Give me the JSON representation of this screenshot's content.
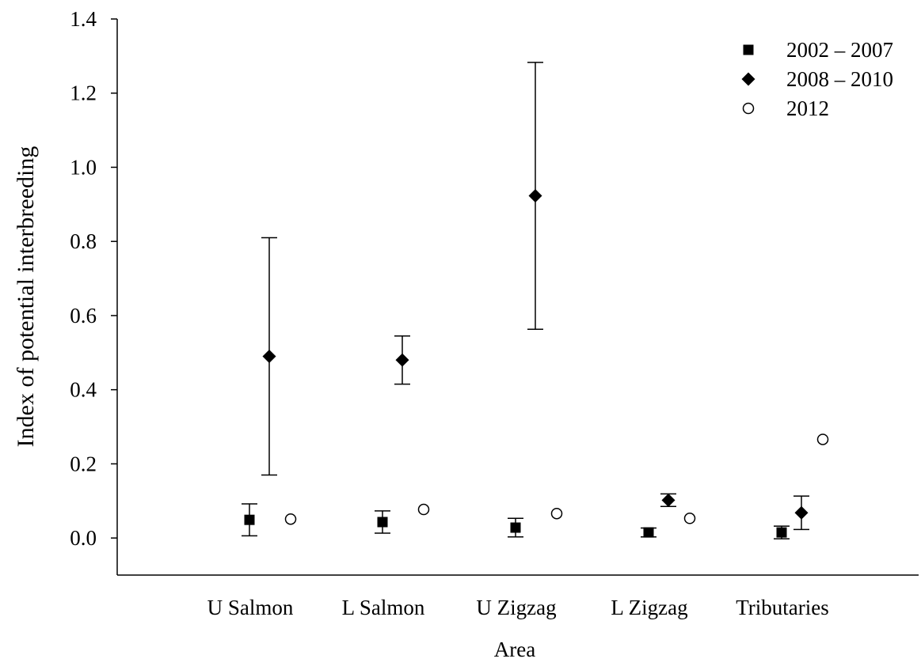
{
  "chart_data": {
    "type": "scatter",
    "x_label": "Area",
    "y_label": "Index of potential interbreeding",
    "categories": [
      "U Salmon",
      "L Salmon",
      "U Zigzag",
      "L Zigzag",
      "Tributaries"
    ],
    "ylim": [
      -0.1,
      1.4
    ],
    "yticks": [
      {
        "value": 0,
        "label": "0.0"
      },
      0.2,
      0.4,
      0.6,
      0.8,
      {
        "value": 1,
        "label": "1.0"
      },
      1.2,
      1.4
    ],
    "legend": "top-right",
    "series": [
      {
        "name": "2002 – 2007",
        "marker": "square",
        "color": "#000000",
        "values": [
          0.049,
          0.043,
          0.028,
          0.015,
          0.015
        ],
        "errors": [
          0.043,
          0.03,
          0.025,
          0.012,
          0.017
        ]
      },
      {
        "name": "2008 – 2010",
        "marker": "diamond",
        "color": "#000000",
        "values": [
          0.49,
          0.48,
          0.923,
          0.102,
          0.068
        ],
        "errors": [
          0.32,
          0.065,
          0.36,
          0.017,
          0.045
        ]
      },
      {
        "name": "2012",
        "marker": "open-circle",
        "color": "#000000",
        "values": [
          0.051,
          0.077,
          0.066,
          0.053,
          0.266
        ]
      }
    ]
  }
}
